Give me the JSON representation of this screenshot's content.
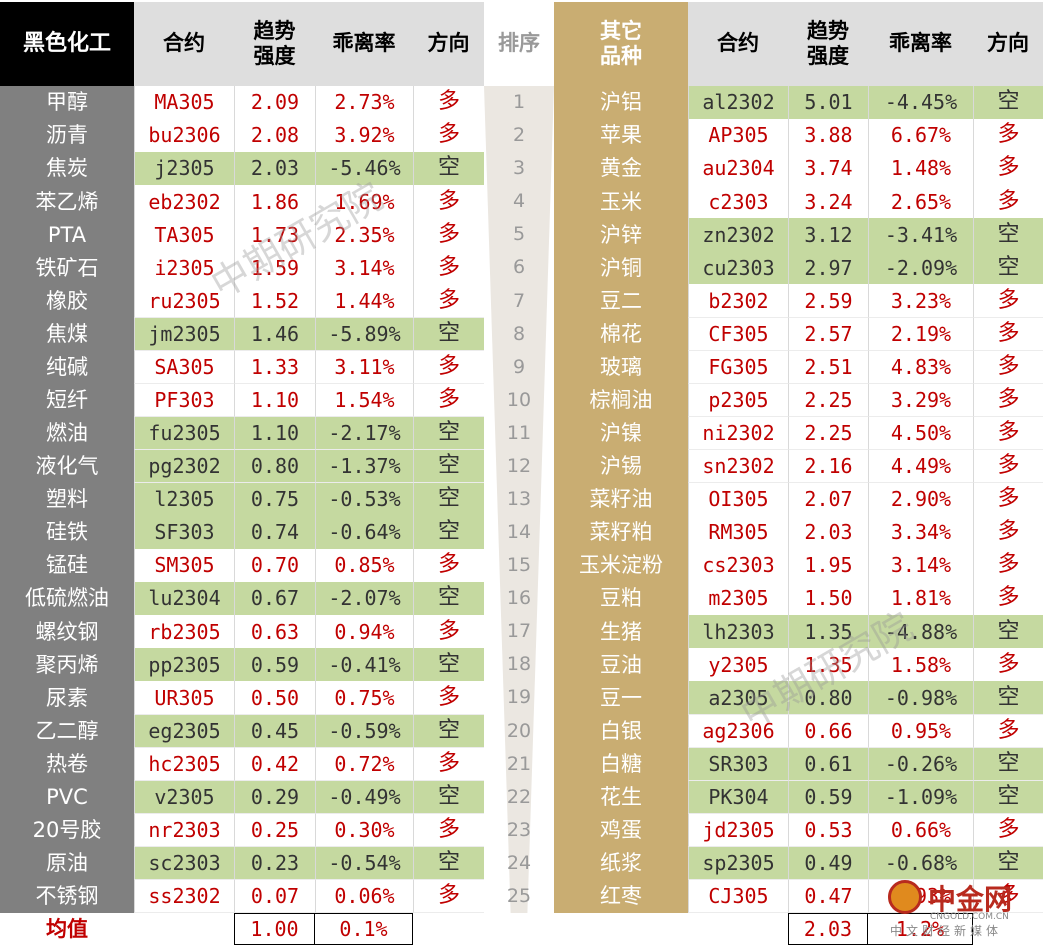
{
  "colors": {
    "left_header_bg": "#000000",
    "left_header_text": "#ffffff",
    "right_header_bg": "#c9ad72",
    "right_header_text": "#ffffff",
    "mid_header_bg": "#dedede",
    "left_name_bg": "#808080",
    "right_name_bg": "#c9ad72",
    "rank_bg": "#f2f2f2",
    "short_bg": "#c5d9a0",
    "long_text": "#c00000",
    "short_text": "#333333",
    "rank_text": "#999999",
    "avg_label_text": "#c00000"
  },
  "left_header": {
    "title": "黑色化工",
    "contract": "合约",
    "trend1": "趋势",
    "trend2": "强度",
    "deviation": "乖离率",
    "direction": "方向"
  },
  "rank_header": "排序",
  "right_header": {
    "title1": "其它",
    "title2": "品种",
    "contract": "合约",
    "trend1": "趋势",
    "trend2": "强度",
    "deviation": "乖离率",
    "direction": "方向"
  },
  "left_rows": [
    {
      "name": "甲醇",
      "contract": "MA305",
      "strength": "2.09",
      "deviation": "2.73%",
      "direction": "多"
    },
    {
      "name": "沥青",
      "contract": "bu2306",
      "strength": "2.08",
      "deviation": "3.92%",
      "direction": "多"
    },
    {
      "name": "焦炭",
      "contract": "j2305",
      "strength": "2.03",
      "deviation": "-5.46%",
      "direction": "空"
    },
    {
      "name": "苯乙烯",
      "contract": "eb2302",
      "strength": "1.86",
      "deviation": "1.69%",
      "direction": "多"
    },
    {
      "name": "PTA",
      "contract": "TA305",
      "strength": "1.73",
      "deviation": "2.35%",
      "direction": "多"
    },
    {
      "name": "铁矿石",
      "contract": "i2305",
      "strength": "1.59",
      "deviation": "3.14%",
      "direction": "多"
    },
    {
      "name": "橡胶",
      "contract": "ru2305",
      "strength": "1.52",
      "deviation": "1.44%",
      "direction": "多"
    },
    {
      "name": "焦煤",
      "contract": "jm2305",
      "strength": "1.46",
      "deviation": "-5.89%",
      "direction": "空"
    },
    {
      "name": "纯碱",
      "contract": "SA305",
      "strength": "1.33",
      "deviation": "3.11%",
      "direction": "多"
    },
    {
      "name": "短纤",
      "contract": "PF303",
      "strength": "1.10",
      "deviation": "1.54%",
      "direction": "多"
    },
    {
      "name": "燃油",
      "contract": "fu2305",
      "strength": "1.10",
      "deviation": "-2.17%",
      "direction": "空"
    },
    {
      "name": "液化气",
      "contract": "pg2302",
      "strength": "0.80",
      "deviation": "-1.37%",
      "direction": "空"
    },
    {
      "name": "塑料",
      "contract": "l2305",
      "strength": "0.75",
      "deviation": "-0.53%",
      "direction": "空"
    },
    {
      "name": "硅铁",
      "contract": "SF303",
      "strength": "0.74",
      "deviation": "-0.64%",
      "direction": "空"
    },
    {
      "name": "锰硅",
      "contract": "SM305",
      "strength": "0.70",
      "deviation": "0.85%",
      "direction": "多"
    },
    {
      "name": "低硫燃油",
      "contract": "lu2304",
      "strength": "0.67",
      "deviation": "-2.07%",
      "direction": "空"
    },
    {
      "name": "螺纹钢",
      "contract": "rb2305",
      "strength": "0.63",
      "deviation": "0.94%",
      "direction": "多"
    },
    {
      "name": "聚丙烯",
      "contract": "pp2305",
      "strength": "0.59",
      "deviation": "-0.41%",
      "direction": "空"
    },
    {
      "name": "尿素",
      "contract": "UR305",
      "strength": "0.50",
      "deviation": "0.75%",
      "direction": "多"
    },
    {
      "name": "乙二醇",
      "contract": "eg2305",
      "strength": "0.45",
      "deviation": "-0.59%",
      "direction": "空"
    },
    {
      "name": "热卷",
      "contract": "hc2305",
      "strength": "0.42",
      "deviation": "0.72%",
      "direction": "多"
    },
    {
      "name": "PVC",
      "contract": "v2305",
      "strength": "0.29",
      "deviation": "-0.49%",
      "direction": "空"
    },
    {
      "name": "20号胶",
      "contract": "nr2303",
      "strength": "0.25",
      "deviation": "0.30%",
      "direction": "多"
    },
    {
      "name": "原油",
      "contract": "sc2303",
      "strength": "0.23",
      "deviation": "-0.54%",
      "direction": "空"
    },
    {
      "name": "不锈钢",
      "contract": "ss2302",
      "strength": "0.07",
      "deviation": "0.06%",
      "direction": "多"
    }
  ],
  "ranks": [
    "1",
    "2",
    "3",
    "4",
    "5",
    "6",
    "7",
    "8",
    "9",
    "10",
    "11",
    "12",
    "13",
    "14",
    "15",
    "16",
    "17",
    "18",
    "19",
    "20",
    "21",
    "22",
    "23",
    "24",
    "25"
  ],
  "right_rows": [
    {
      "name": "沪铝",
      "contract": "al2302",
      "strength": "5.01",
      "deviation": "-4.45%",
      "direction": "空"
    },
    {
      "name": "苹果",
      "contract": "AP305",
      "strength": "3.88",
      "deviation": "6.67%",
      "direction": "多"
    },
    {
      "name": "黄金",
      "contract": "au2304",
      "strength": "3.74",
      "deviation": "1.48%",
      "direction": "多"
    },
    {
      "name": "玉米",
      "contract": "c2303",
      "strength": "3.24",
      "deviation": "2.65%",
      "direction": "多"
    },
    {
      "name": "沪锌",
      "contract": "zn2302",
      "strength": "3.12",
      "deviation": "-3.41%",
      "direction": "空"
    },
    {
      "name": "沪铜",
      "contract": "cu2303",
      "strength": "2.97",
      "deviation": "-2.09%",
      "direction": "空"
    },
    {
      "name": "豆二",
      "contract": "b2302",
      "strength": "2.59",
      "deviation": "3.23%",
      "direction": "多"
    },
    {
      "name": "棉花",
      "contract": "CF305",
      "strength": "2.57",
      "deviation": "2.19%",
      "direction": "多"
    },
    {
      "name": "玻璃",
      "contract": "FG305",
      "strength": "2.51",
      "deviation": "4.83%",
      "direction": "多"
    },
    {
      "name": "棕榈油",
      "contract": "p2305",
      "strength": "2.25",
      "deviation": "3.29%",
      "direction": "多"
    },
    {
      "name": "沪镍",
      "contract": "ni2302",
      "strength": "2.25",
      "deviation": "4.50%",
      "direction": "多"
    },
    {
      "name": "沪锡",
      "contract": "sn2302",
      "strength": "2.16",
      "deviation": "4.49%",
      "direction": "多"
    },
    {
      "name": "菜籽油",
      "contract": "OI305",
      "strength": "2.07",
      "deviation": "2.90%",
      "direction": "多"
    },
    {
      "name": "菜籽粕",
      "contract": "RM305",
      "strength": "2.03",
      "deviation": "3.34%",
      "direction": "多"
    },
    {
      "name": "玉米淀粉",
      "contract": "cs2303",
      "strength": "1.95",
      "deviation": "3.14%",
      "direction": "多"
    },
    {
      "name": "豆粕",
      "contract": "m2305",
      "strength": "1.50",
      "deviation": "1.81%",
      "direction": "多"
    },
    {
      "name": "生猪",
      "contract": "lh2303",
      "strength": "1.35",
      "deviation": "-4.88%",
      "direction": "空"
    },
    {
      "name": "豆油",
      "contract": "y2305",
      "strength": "1.35",
      "deviation": "1.58%",
      "direction": "多"
    },
    {
      "name": "豆一",
      "contract": "a2305",
      "strength": "0.80",
      "deviation": "-0.98%",
      "direction": "空"
    },
    {
      "name": "白银",
      "contract": "ag2306",
      "strength": "0.66",
      "deviation": "0.95%",
      "direction": "多"
    },
    {
      "name": "白糖",
      "contract": "SR303",
      "strength": "0.61",
      "deviation": "-0.26%",
      "direction": "空"
    },
    {
      "name": "花生",
      "contract": "PK304",
      "strength": "0.59",
      "deviation": "-1.09%",
      "direction": "空"
    },
    {
      "name": "鸡蛋",
      "contract": "jd2305",
      "strength": "0.53",
      "deviation": "0.66%",
      "direction": "多"
    },
    {
      "name": "纸浆",
      "contract": "sp2305",
      "strength": "0.49",
      "deviation": "-0.68%",
      "direction": "空"
    },
    {
      "name": "红枣",
      "contract": "CJ305",
      "strength": "0.47",
      "deviation": "0.93%",
      "direction": "多"
    }
  ],
  "average": {
    "label": "均值",
    "left_strength": "1.00",
    "left_deviation": "0.1%",
    "right_strength": "2.03",
    "right_deviation": "1.2%"
  },
  "watermarks": {
    "text": "中期研究院"
  },
  "logo": {
    "brand": "中金网",
    "domain": "CNGOLD.COM.CN",
    "tagline": "中文财经新媒体"
  }
}
